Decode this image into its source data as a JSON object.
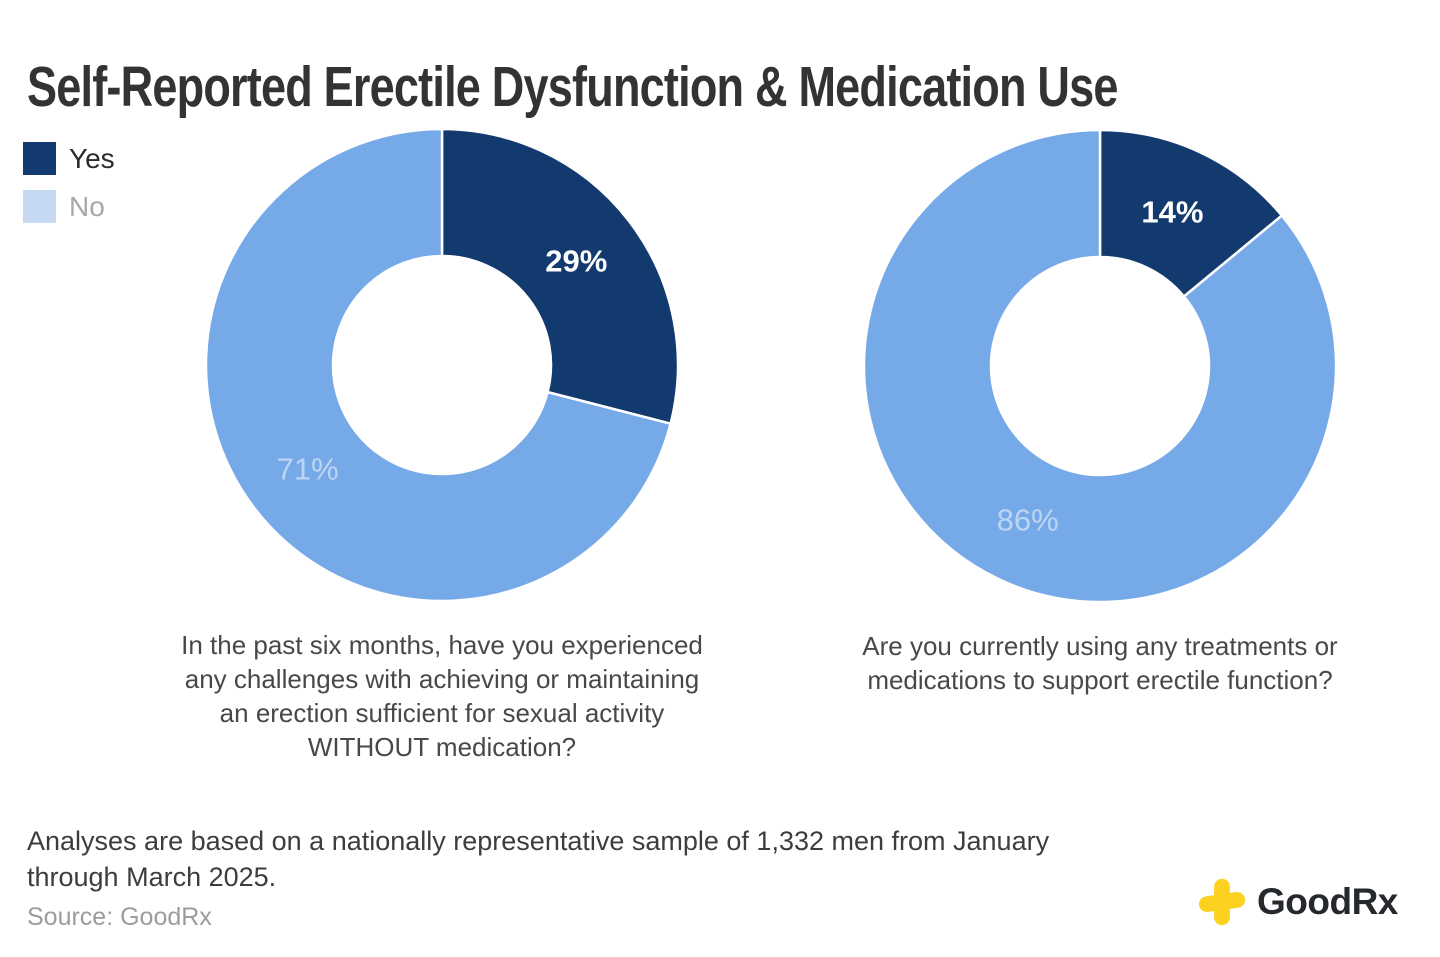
{
  "title": "Self-Reported Erectile Dysfunction & Medication Use",
  "legend": {
    "items": [
      {
        "label": "Yes",
        "swatch_color": "#133a6e",
        "text_color": "#2b2b2b"
      },
      {
        "label": "No",
        "swatch_color": "#c5d9f2",
        "text_color": "#a8a8a8"
      }
    ]
  },
  "chart_data": [
    {
      "type": "pie",
      "subtype": "donut",
      "question": "In the past six months, have you experienced any challenges with achieving or maintaining an erection sufficient for sexual activity WITHOUT medication?",
      "question_lines": [
        "In the past six months, have you experienced",
        "any challenges with achieving or maintaining",
        "an erection sufficient for sexual activity",
        "WITHOUT medication?"
      ],
      "categories": [
        "Yes",
        "No"
      ],
      "values": [
        29,
        71
      ],
      "start_angle_deg": 0,
      "direction": "clockwise",
      "legend_position": "top-left",
      "slices": [
        {
          "category": "Yes",
          "value": 29,
          "label": "29%",
          "color": "#133a6e",
          "label_color": "#ffffff",
          "label_bold": true
        },
        {
          "category": "No",
          "value": 71,
          "label": "71%",
          "color": "#76a9e8",
          "label_color": "#bdd5f4",
          "label_bold": false
        }
      ]
    },
    {
      "type": "pie",
      "subtype": "donut",
      "question": "Are you currently using any treatments or medications to support erectile function?",
      "question_lines": [
        "Are you currently using any treatments or",
        "medications to support erectile function?"
      ],
      "categories": [
        "Yes",
        "No"
      ],
      "values": [
        14,
        86
      ],
      "start_angle_deg": 0,
      "direction": "clockwise",
      "slices": [
        {
          "category": "Yes",
          "value": 14,
          "label": "14%",
          "color": "#133a6e",
          "label_color": "#ffffff",
          "label_bold": true
        },
        {
          "category": "No",
          "value": 86,
          "label": "86%",
          "color": "#76a9e8",
          "label_color": "#bdd5f4",
          "label_bold": false
        }
      ]
    }
  ],
  "footnote": "Analyses are based on a nationally representative sample of 1,332 men from January through March 2025.",
  "footnote_lines": [
    "Analyses are based on a nationally representative sample of 1,332 men from January",
    "through March 2025."
  ],
  "source": "Source: GoodRx",
  "logo": {
    "text": "GoodRx",
    "icon": "goodrx-plus-icon",
    "icon_color": "#fcd120",
    "text_color": "#25282c"
  }
}
